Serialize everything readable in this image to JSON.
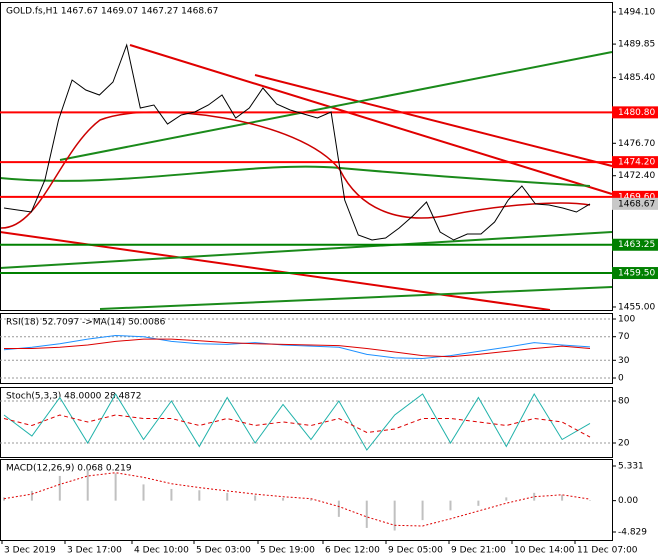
{
  "chart_data": [
    {
      "type": "line",
      "title": "GOLD.fs,H1  1467.67 1469.07 1467.27 1468.67",
      "ylim": [
        1454.6,
        1495.43
      ],
      "yticks": [
        {
          "value": 1494.1,
          "label": "1494.10"
        },
        1489.85,
        {
          "value": 1485.4,
          "label": "1485.40"
        },
        {
          "value": 1476.7,
          "label": "1476.70"
        },
        {
          "value": 1472.4,
          "label": "1472.40"
        },
        {
          "value": 1455,
          "label": "1455.00"
        }
      ],
      "levels": [
        {
          "value": 1480.8,
          "label": "1480.80",
          "color": "#ff0000"
        },
        {
          "value": 1474.2,
          "label": "1474.20",
          "color": "#ff0000"
        },
        {
          "value": 1469.6,
          "label": "1469.60",
          "color": "#ff0000"
        },
        {
          "value": 1463.25,
          "color": "#008000"
        },
        {
          "value": 1459.5,
          "label": "1459.50",
          "color": "#008000"
        }
      ],
      "series": [
        {
          "color": "#000000",
          "values": [
            1468.12,
            1467.86,
            1467.59,
            1471.83,
            1479.79,
            1485.09,
            1483.76,
            1483.1,
            1484.82,
            1489.73,
            1481.38,
            1481.77,
            1479.25,
            1480.45,
            1480.85,
            1481.77,
            1483.1,
            1480.05,
            1481.38,
            1484.03,
            1481.91,
            1481.11,
            1480.58,
            1480.05,
            1480.85,
            1469.18,
            1464.54,
            1463.88,
            1464.15,
            1465.47,
            1467.06,
            1468.92,
            1464.94,
            1463.88,
            1464.68,
            1464.68,
            1466.27,
            1469.18,
            1471.04,
            1468.65,
            1468.52,
            1468.12,
            1467.59,
            1468.67
          ]
        }
      ]
    },
    {
      "type": "line",
      "title": "RSI(18) 52.7097 ->MA(14) 50.0086",
      "ylim": [
        -8.5,
        110.2
      ],
      "yticks": [
        100,
        70,
        30,
        0
      ],
      "grid": true,
      "series": [
        {
          "color": "#1e90ff",
          "values": [
            48,
            52,
            58,
            66,
            72,
            70,
            62,
            58,
            57,
            60,
            56,
            54,
            52,
            40,
            34,
            33,
            38,
            45,
            52,
            60,
            56,
            52.7097
          ]
        },
        {
          "color": "#dd0000",
          "values": [
            50,
            50,
            52,
            56,
            62,
            66,
            66,
            63,
            60,
            58,
            57,
            56,
            55,
            50,
            44,
            38,
            36,
            40,
            45,
            50,
            54,
            50.0086
          ]
        }
      ]
    },
    {
      "type": "line",
      "title": "Stoch(5,3,3) 48.0000 28.4872",
      "ylim": [
        0,
        100
      ],
      "yticks": [
        80,
        20
      ],
      "grid": true,
      "series": [
        {
          "color": "#20b2aa",
          "values": [
            60,
            30,
            85,
            20,
            90,
            25,
            80,
            15,
            85,
            20,
            75,
            25,
            80,
            10,
            60,
            90,
            20,
            85,
            15,
            90,
            25,
            48
          ]
        },
        {
          "color": "#dd0000",
          "style": "dashed",
          "values": [
            55,
            45,
            60,
            50,
            60,
            55,
            55,
            45,
            55,
            45,
            50,
            45,
            55,
            35,
            40,
            55,
            55,
            50,
            45,
            55,
            50,
            28.4872
          ]
        }
      ]
    },
    {
      "type": "bar",
      "title": "MACD(12,26,9) 0.068 0.219",
      "ylim": [
        -6.06,
        6.41
      ],
      "yticks": [
        5.331,
        {
          "value": 0,
          "label": "0.00"
        },
        -4.829
      ],
      "series": [
        {
          "color": "#c0c0c0",
          "style": "bar",
          "values": [
            0.5,
            1.5,
            3.8,
            4.8,
            4.2,
            2.5,
            1.8,
            1.6,
            1.2,
            0.8,
            0.4,
            0.2,
            -2.5,
            -4.2,
            -4.6,
            -3.0,
            -1.5,
            -0.8,
            0.5,
            1.2,
            0.9,
            0.068
          ]
        },
        {
          "color": "#dd0000",
          "style": "dotted",
          "values": [
            0.3,
            1.0,
            2.5,
            3.8,
            4.3,
            3.6,
            2.6,
            2.0,
            1.5,
            1.0,
            0.6,
            0.3,
            -0.9,
            -2.5,
            -3.8,
            -3.9,
            -2.8,
            -1.6,
            -0.4,
            0.6,
            0.9,
            0.219
          ]
        }
      ],
      "x_labels": [
        "3 Dec 2019",
        "3 Dec 17:00",
        "4 Dec 10:00",
        "5 Dec 03:00",
        "5 Dec 19:00",
        "6 Dec 12:00",
        "9 Dec 05:00",
        "9 Dec 21:00",
        "10 Dec 14:00",
        "11 Dec 07:00"
      ]
    }
  ]
}
